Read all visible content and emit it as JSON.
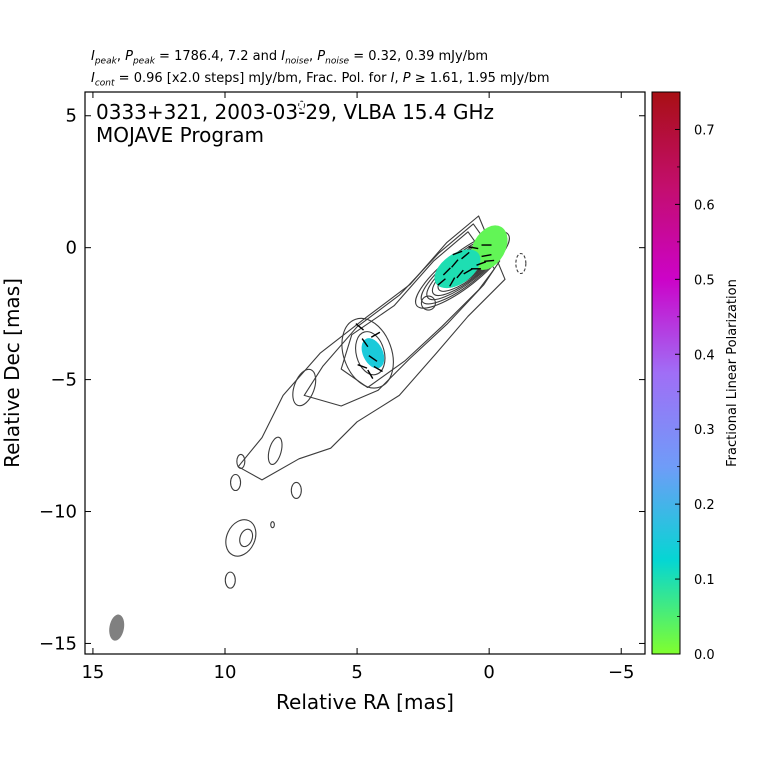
{
  "header": {
    "line1": {
      "a": "I",
      "a_sub": "peak",
      "b": ", ",
      "c": "P",
      "c_sub": "peak",
      "d": " = 1786.4, 7.2 and ",
      "e": "I",
      "e_sub": "noise",
      "f": ", ",
      "g": "P",
      "g_sub": "noise",
      "h": " = 0.32, 0.39 mJy/bm"
    },
    "line2": {
      "a": "I",
      "a_sub": "cont",
      "b": " = 0.96 [x2.0 steps] mJy/bm, Frac. Pol. for ",
      "c": "I",
      "d": ", ",
      "e": "P",
      "f": " ≥ 1.61, 1.95 mJy/bm"
    }
  },
  "chart_data": {
    "type": "contour",
    "title": "0333+321, 2003-03-29, VLBA 15.4 GHz",
    "subtitle": "MOJAVE Program",
    "xlabel": "Relative RA [mas]",
    "ylabel": "Relative Dec [mas]",
    "xlim": [
      15.3,
      -5.9
    ],
    "ylim": [
      -15.4,
      5.9
    ],
    "xticks": [
      15,
      10,
      5,
      0,
      -5
    ],
    "xtick_labels": [
      "15",
      "10",
      "5",
      "0",
      "−5"
    ],
    "yticks": [
      5,
      0,
      -5,
      -10,
      -15
    ],
    "ytick_labels": [
      "5",
      "0",
      "−5",
      "−10",
      "−15"
    ],
    "intensity": {
      "peak_mJy_bm": 1786.4,
      "noise_mJy_bm": 0.32,
      "lowest_contour_mJy_bm": 0.96,
      "contour_step_factor": 2.0
    },
    "polarization": {
      "peak_mJy_bm": 7.2,
      "noise_mJy_bm": 0.39,
      "frac_pol_cutoff_I_mJy_bm": 1.61,
      "frac_pol_cutoff_P_mJy_bm": 1.95
    },
    "components": [
      {
        "ra": 0.0,
        "dec": 0.0,
        "frac_pol": 0.03
      },
      {
        "ra": 1.2,
        "dec": -0.8,
        "frac_pol": 0.1
      },
      {
        "ra": 4.4,
        "dec": -4.0,
        "frac_pol": 0.15
      }
    ],
    "beam": {
      "ra": 14.1,
      "dec": -14.4,
      "major_mas": 1.0,
      "minor_mas": 0.55,
      "pa_deg": -10
    },
    "colorbar": {
      "label": "Fractional Linear Polarization",
      "min": 0.0,
      "max": 0.75,
      "tick_values": [
        0.0,
        0.1,
        0.2,
        0.3,
        0.4,
        0.5,
        0.6,
        0.7
      ],
      "tick_labels": [
        "0.0",
        "0.1",
        "0.2",
        "0.3",
        "0.4",
        "0.5",
        "0.6",
        "0.7"
      ],
      "colormap": [
        "#80ff2e",
        "#05d6d3",
        "#6f9cf8",
        "#a06ef6",
        "#cc03c8",
        "#c30e6c",
        "#a80f14"
      ]
    },
    "contour_color": "#3c3c3c",
    "beam_color": "#808080",
    "grid": false
  }
}
